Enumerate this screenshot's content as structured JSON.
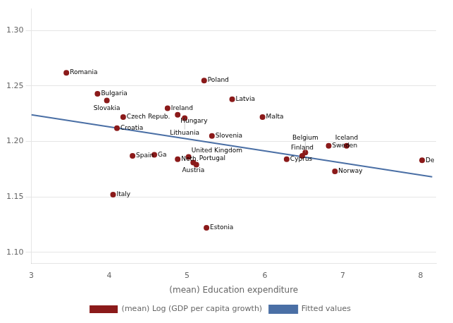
{
  "chart_data": {
    "type": "scatter",
    "x_label": "(mean) Education expenditure",
    "xlim": [
      3.0,
      8.2
    ],
    "ylim": [
      1.09,
      1.32
    ],
    "xticks": [
      3,
      4,
      5,
      6,
      7,
      8
    ],
    "yticks": [
      {
        "value": 1.1,
        "label": "1.10"
      },
      1.15,
      {
        "value": 1.2,
        "label": "1.20"
      },
      1.25,
      {
        "value": 1.3,
        "label": "1.30"
      }
    ],
    "grid": "y",
    "legend": "bottom",
    "series": [
      {
        "name": "Fitted values",
        "type": "line",
        "color": "#4A6FA5",
        "x": [
          3.0,
          8.15
        ],
        "values": [
          1.224,
          1.168
        ]
      },
      {
        "name": "(mean) Log (GDP per capita growth)",
        "type": "scatter",
        "marker": "circle",
        "color": "#8B1A1A",
        "x": [
          3.45,
          3.85,
          3.97,
          4.18,
          4.1,
          4.05,
          4.3,
          4.75,
          4.88,
          4.97,
          4.58,
          4.88,
          5.02,
          5.08,
          5.12,
          5.22,
          5.58,
          5.25,
          5.32,
          5.97,
          6.28,
          6.48,
          6.52,
          6.82,
          7.05,
          6.9,
          8.02
        ],
        "values": [
          1.262,
          1.243,
          1.237,
          1.222,
          1.212,
          1.152,
          1.187,
          1.23,
          1.224,
          1.221,
          1.188,
          1.184,
          1.186,
          1.181,
          1.179,
          1.255,
          1.238,
          1.122,
          1.205,
          1.222,
          1.184,
          1.187,
          1.19,
          1.196,
          1.196,
          1.173,
          1.183
        ],
        "labels": [
          "Romania",
          "Bulgaria",
          "Slovakia",
          "Czech Repub.",
          "Croatia",
          "Italy",
          "Spain",
          "Ireland",
          "Hungary",
          "Lithuania",
          "Ga",
          "Neth.",
          "United Kingdom",
          "Austria",
          "Portugal",
          "Poland",
          "Latvia",
          "Estonia",
          "Slovenia",
          "Malta",
          "Cyprus",
          "Finland",
          "Belgium",
          "Sweden",
          "Iceland",
          "Norway",
          "De"
        ]
      }
    ]
  }
}
